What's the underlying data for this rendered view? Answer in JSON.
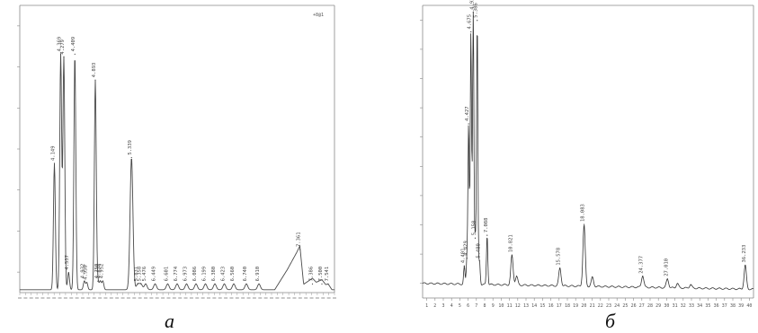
{
  "figure": {
    "captions": {
      "a": "а",
      "b": "б"
    }
  },
  "chart_data": [
    {
      "type": "line",
      "panel": "а",
      "corner_label": "+8@1",
      "x_range": [
        0,
        100
      ],
      "y_range": [
        0,
        100
      ],
      "y_ticks": [
        "",
        "",
        "",
        "",
        "",
        "",
        ""
      ],
      "x_ticks": [],
      "series": [
        {
          "peaks": [
            {
              "rt": 11.0,
              "h": 44,
              "label": "4.149"
            },
            {
              "rt": 13.0,
              "h": 82,
              "label": "4.369"
            },
            {
              "rt": 14.0,
              "h": 81,
              "label": "4.279"
            },
            {
              "rt": 15.5,
              "h": 6,
              "label": "4.537"
            },
            {
              "rt": 17.5,
              "h": 82,
              "label": "4.409"
            },
            {
              "rt": 20.5,
              "h": 3,
              "label": "4.932"
            },
            {
              "rt": 21.3,
              "h": 2.5,
              "label": "4.950"
            },
            {
              "rt": 24.0,
              "h": 73,
              "label": "4.893"
            },
            {
              "rt": 24.8,
              "h": 3,
              "label": "4.750"
            },
            {
              "rt": 25.6,
              "h": 3,
              "label": "4.838"
            },
            {
              "rt": 26.4,
              "h": 3,
              "label": "4.952"
            },
            {
              "rt": 35.5,
              "h": 46,
              "label": "5.339"
            },
            {
              "rt": 37.5,
              "h": 2,
              "label": "5.831"
            },
            {
              "rt": 38.5,
              "h": 2,
              "label": "5.358"
            },
            {
              "rt": 40.0,
              "h": 2,
              "label": "5.476"
            },
            {
              "rt": 43.0,
              "h": 2,
              "label": "6.449"
            },
            {
              "rt": 47.0,
              "h": 2,
              "label": "6.601"
            },
            {
              "rt": 50.0,
              "h": 2,
              "label": "6.774"
            },
            {
              "rt": 53.0,
              "h": 2,
              "label": "6.973"
            },
            {
              "rt": 56.0,
              "h": 2,
              "label": "6.086"
            },
            {
              "rt": 59.0,
              "h": 2,
              "label": "6.199"
            },
            {
              "rt": 62.0,
              "h": 2,
              "label": "6.380"
            },
            {
              "rt": 65.0,
              "h": 2,
              "label": "6.423"
            },
            {
              "rt": 68.0,
              "h": 2,
              "label": "6.560"
            },
            {
              "rt": 72.0,
              "h": 2,
              "label": "6.740"
            },
            {
              "rt": 76.0,
              "h": 2,
              "label": "6.910"
            },
            {
              "rt": 89.0,
              "h": 14,
              "label": "7.361"
            },
            {
              "rt": 93.0,
              "h": 2,
              "label": "7.386"
            },
            {
              "rt": 96.0,
              "h": 2,
              "label": "7.500"
            },
            {
              "rt": 98.0,
              "h": 2,
              "label": "7.541"
            }
          ]
        }
      ]
    },
    {
      "type": "line",
      "panel": "б",
      "x_range": [
        0,
        100
      ],
      "y_range": [
        0,
        100
      ],
      "y_ticks": [
        "",
        "",
        "",
        "",
        "",
        "",
        "",
        "",
        "",
        ""
      ],
      "x_ticks": [
        "1",
        "2",
        "3",
        "4",
        "5",
        "6",
        "7",
        "8",
        "9",
        "10",
        "11",
        "12",
        "13",
        "14",
        "15",
        "16",
        "17",
        "18",
        "19",
        "20",
        "21",
        "22",
        "23",
        "24",
        "25",
        "26",
        "27",
        "28",
        "29",
        "30",
        "31",
        "32",
        "33",
        "34",
        "35",
        "36",
        "37",
        "38",
        "39",
        "40"
      ],
      "series": [
        {
          "peaks": [
            {
              "rt": 12.6,
              "h": 6,
              "label": "4.401"
            },
            {
              "rt": 13.4,
              "h": 9,
              "label": "4.429"
            },
            {
              "rt": 13.9,
              "h": 55,
              "label": "4.427"
            },
            {
              "rt": 14.6,
              "h": 86,
              "label": "4.675"
            },
            {
              "rt": 15.3,
              "h": 93,
              "label": "4.938"
            },
            {
              "rt": 15.9,
              "h": 16,
              "label": "5.158"
            },
            {
              "rt": 16.5,
              "h": 90,
              "label": "5.386"
            },
            {
              "rt": 17.2,
              "h": 8,
              "label": "5.480"
            },
            {
              "rt": 19.5,
              "h": 17,
              "label": "7.088"
            },
            {
              "rt": 27.0,
              "h": 10,
              "label": "10.821"
            },
            {
              "rt": 28.4,
              "h": 3,
              "label": ""
            },
            {
              "rt": 41.5,
              "h": 6,
              "label": "15.578"
            },
            {
              "rt": 48.8,
              "h": 21,
              "label": "18.083"
            },
            {
              "rt": 51.3,
              "h": 3,
              "label": ""
            },
            {
              "rt": 66.5,
              "h": 4,
              "label": "24.377"
            },
            {
              "rt": 74.0,
              "h": 3,
              "label": "27.010"
            },
            {
              "rt": 77.0,
              "h": 1.5,
              "label": ""
            },
            {
              "rt": 81.0,
              "h": 1.2,
              "label": ""
            },
            {
              "rt": 97.5,
              "h": 8,
              "label": "36.233"
            }
          ]
        }
      ]
    }
  ]
}
